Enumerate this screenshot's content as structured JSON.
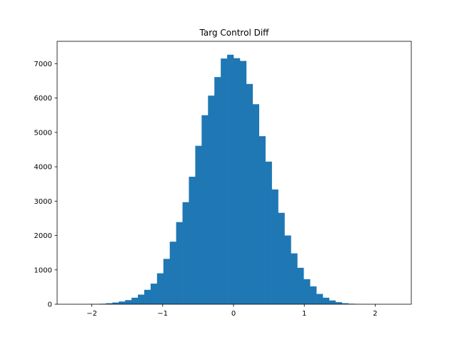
{
  "chart_data": {
    "type": "bar",
    "title": "Targ Control Diff",
    "xlabel": "",
    "ylabel": "",
    "xlim": [
      -2.49,
      2.51
    ],
    "ylim": [
      0,
      7650
    ],
    "xticks": [
      -2,
      -1,
      0,
      1,
      2
    ],
    "xtick_labels": [
      "−2",
      "−1",
      "0",
      "1",
      "2"
    ],
    "yticks": [
      0,
      1000,
      2000,
      3000,
      4000,
      5000,
      6000,
      7000
    ],
    "ytick_labels": [
      "0",
      "1000",
      "2000",
      "3000",
      "4000",
      "5000",
      "6000",
      "7000"
    ],
    "bin_edges": [
      -2.25,
      -2.16,
      -2.07,
      -1.98,
      -1.89,
      -1.8,
      -1.71,
      -1.62,
      -1.53,
      -1.44,
      -1.35,
      -1.26,
      -1.17,
      -1.08,
      -0.99,
      -0.9,
      -0.81,
      -0.72,
      -0.63,
      -0.54,
      -0.45,
      -0.36,
      -0.27,
      -0.18,
      -0.09,
      0.0,
      0.09,
      0.18,
      0.27,
      0.36,
      0.45,
      0.54,
      0.63,
      0.72,
      0.81,
      0.9,
      0.99,
      1.08,
      1.17,
      1.26,
      1.35,
      1.44,
      1.53,
      1.62,
      1.71,
      1.8,
      1.89,
      1.98,
      2.07,
      2.16,
      2.25
    ],
    "values": [
      2,
      3,
      5,
      8,
      15,
      30,
      50,
      80,
      120,
      190,
      280,
      420,
      600,
      900,
      1320,
      1820,
      2390,
      2970,
      3710,
      4610,
      5500,
      6070,
      6610,
      7150,
      7260,
      7160,
      7080,
      6410,
      5820,
      4890,
      4150,
      3340,
      2660,
      2000,
      1480,
      1060,
      730,
      520,
      300,
      190,
      110,
      60,
      30,
      15,
      8,
      4,
      3,
      2,
      1,
      1
    ],
    "bar_color": "#1f77b4",
    "grid": false,
    "legend": "none"
  }
}
